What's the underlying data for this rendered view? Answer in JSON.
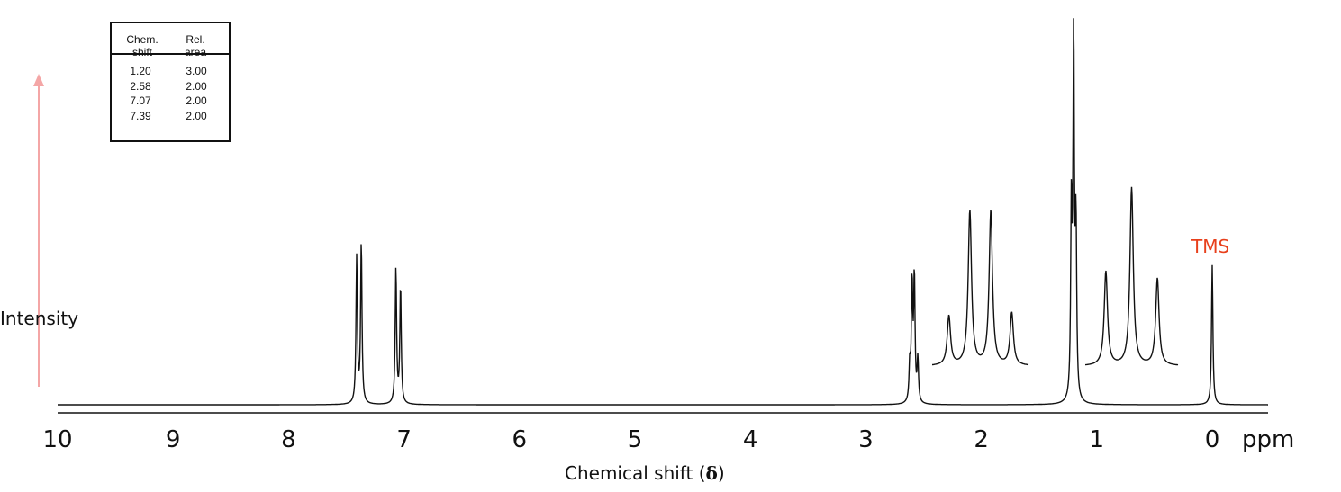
{
  "chart_data": {
    "type": "line",
    "x_axis": {
      "ticks": [
        "10",
        "9",
        "8",
        "7",
        "6",
        "5",
        "4",
        "3",
        "2",
        "1",
        "0"
      ],
      "tick_values": [
        10,
        9,
        8,
        7,
        6,
        5,
        4,
        3,
        2,
        1,
        0
      ],
      "unit": "ppm",
      "label_text": "Chemical shift (",
      "label_symbol": "δ",
      "label_close": ")",
      "range": [
        10,
        -0.5
      ],
      "reversed": true
    },
    "y_axis": {
      "label": "Intensity",
      "arrow_color": "#f4a6a6"
    },
    "reference": {
      "label": "TMS",
      "shift": 0.0,
      "color": "#e8401c"
    },
    "series": [
      {
        "peaks": [
          {
            "shift": 7.41,
            "height": 0.41
          },
          {
            "shift": 7.37,
            "height": 0.45
          },
          {
            "shift": 7.07,
            "height": 0.38
          },
          {
            "shift": 7.03,
            "height": 0.33
          },
          {
            "shift": 2.62,
            "height": 0.1
          },
          {
            "shift": 2.6,
            "height": 0.33
          },
          {
            "shift": 2.58,
            "height": 0.35
          },
          {
            "shift": 2.55,
            "height": 0.12
          },
          {
            "shift": 1.22,
            "height": 0.52
          },
          {
            "shift": 1.2,
            "height": 1.0
          },
          {
            "shift": 1.18,
            "height": 0.47
          },
          {
            "shift": 0.0,
            "height": 0.39
          }
        ]
      }
    ],
    "insets": [
      {
        "of_shift": 2.58,
        "pattern": "quartet",
        "relative_heights": [
          0.32,
          1.0,
          1.0,
          0.34
        ]
      },
      {
        "of_shift": 1.2,
        "pattern": "triplet",
        "relative_heights": [
          0.53,
          1.0,
          0.49
        ]
      }
    ],
    "peak_table": {
      "headers": [
        [
          "Chem.",
          "shift"
        ],
        [
          "Rel.",
          "area"
        ]
      ],
      "rows": [
        [
          "1.20",
          "3.00"
        ],
        [
          "2.58",
          "2.00"
        ],
        [
          "7.07",
          "2.00"
        ],
        [
          "7.39",
          "2.00"
        ]
      ]
    }
  }
}
